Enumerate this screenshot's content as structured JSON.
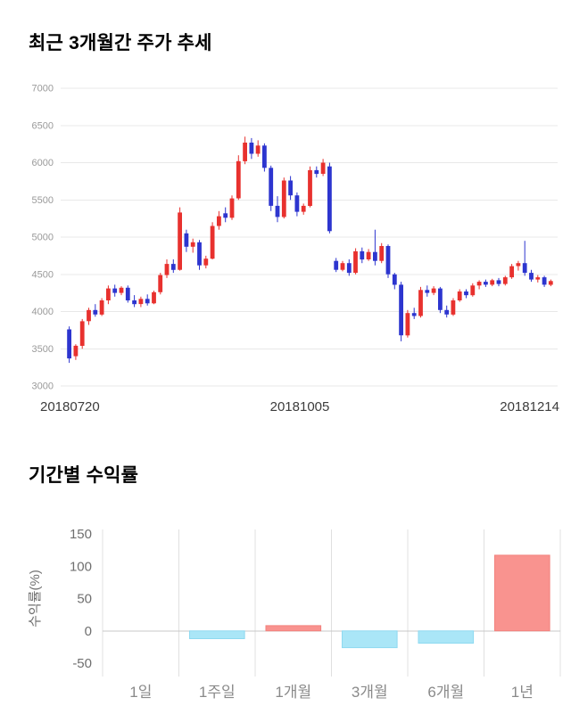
{
  "chart_data": [
    {
      "type": "candlestick",
      "title": "최근 3개월간 주가 추세",
      "ylim": [
        3000,
        7000
      ],
      "yticks": [
        3000,
        3500,
        4000,
        4500,
        5000,
        5500,
        6000,
        6500,
        7000
      ],
      "xtick_labels": [
        "20180720",
        "20181005",
        "20181214"
      ],
      "up_color": "#e8312e",
      "down_color": "#2d35cf",
      "grid_color": "#e8e8e8",
      "tick_color": "#9a9a9a",
      "candles_ohlc": [
        [
          3760,
          3800,
          3310,
          3370
        ],
        [
          3400,
          3560,
          3350,
          3540
        ],
        [
          3540,
          3900,
          3500,
          3870
        ],
        [
          3870,
          4050,
          3820,
          4020
        ],
        [
          4020,
          4100,
          3930,
          3960
        ],
        [
          3960,
          4180,
          3940,
          4150
        ],
        [
          4150,
          4350,
          4100,
          4310
        ],
        [
          4310,
          4360,
          4200,
          4250
        ],
        [
          4250,
          4340,
          4220,
          4320
        ],
        [
          4320,
          4350,
          4120,
          4150
        ],
        [
          4150,
          4220,
          4060,
          4100
        ],
        [
          4100,
          4200,
          4060,
          4170
        ],
        [
          4170,
          4230,
          4080,
          4110
        ],
        [
          4110,
          4280,
          4100,
          4260
        ],
        [
          4260,
          4520,
          4230,
          4490
        ],
        [
          4490,
          4700,
          4450,
          4640
        ],
        [
          4640,
          4700,
          4520,
          4560
        ],
        [
          4560,
          5400,
          4550,
          5330
        ],
        [
          5050,
          5100,
          4800,
          4870
        ],
        [
          4870,
          4980,
          4790,
          4930
        ],
        [
          4930,
          4960,
          4560,
          4620
        ],
        [
          4620,
          4750,
          4580,
          4710
        ],
        [
          4710,
          5200,
          4700,
          5150
        ],
        [
          5150,
          5350,
          5100,
          5280
        ],
        [
          5320,
          5400,
          5200,
          5260
        ],
        [
          5260,
          5560,
          5230,
          5520
        ],
        [
          5520,
          6100,
          5500,
          6020
        ],
        [
          6020,
          6350,
          5980,
          6270
        ],
        [
          6270,
          6330,
          6050,
          6120
        ],
        [
          6120,
          6300,
          6080,
          6230
        ],
        [
          6230,
          6260,
          5880,
          5930
        ],
        [
          5930,
          5960,
          5350,
          5420
        ],
        [
          5420,
          5550,
          5200,
          5270
        ],
        [
          5270,
          5800,
          5250,
          5760
        ],
        [
          5760,
          5820,
          5500,
          5560
        ],
        [
          5560,
          5600,
          5280,
          5340
        ],
        [
          5340,
          5450,
          5300,
          5420
        ],
        [
          5420,
          5950,
          5400,
          5900
        ],
        [
          5900,
          5950,
          5800,
          5850
        ],
        [
          5850,
          6050,
          5820,
          6000
        ],
        [
          5950,
          6000,
          5050,
          5080
        ],
        [
          4680,
          4720,
          4530,
          4560
        ],
        [
          4560,
          4680,
          4540,
          4650
        ],
        [
          4650,
          4700,
          4480,
          4520
        ],
        [
          4520,
          4850,
          4500,
          4810
        ],
        [
          4810,
          4860,
          4650,
          4700
        ],
        [
          4700,
          4840,
          4680,
          4800
        ],
        [
          4800,
          5100,
          4620,
          4680
        ],
        [
          4680,
          4920,
          4650,
          4880
        ],
        [
          4880,
          4900,
          4450,
          4500
        ],
        [
          4500,
          4520,
          4300,
          4360
        ],
        [
          4360,
          4400,
          3600,
          3680
        ],
        [
          3680,
          4020,
          3650,
          3980
        ],
        [
          3980,
          4050,
          3900,
          3940
        ],
        [
          3940,
          4330,
          3920,
          4290
        ],
        [
          4290,
          4350,
          4200,
          4250
        ],
        [
          4250,
          4340,
          4220,
          4310
        ],
        [
          4310,
          4330,
          3980,
          4020
        ],
        [
          4020,
          4080,
          3920,
          3960
        ],
        [
          3960,
          4180,
          3940,
          4150
        ],
        [
          4150,
          4300,
          4130,
          4270
        ],
        [
          4270,
          4300,
          4180,
          4220
        ],
        [
          4220,
          4380,
          4200,
          4350
        ],
        [
          4350,
          4420,
          4300,
          4400
        ],
        [
          4400,
          4430,
          4330,
          4360
        ],
        [
          4360,
          4440,
          4340,
          4420
        ],
        [
          4420,
          4450,
          4340,
          4370
        ],
        [
          4370,
          4480,
          4350,
          4460
        ],
        [
          4460,
          4640,
          4440,
          4610
        ],
        [
          4610,
          4680,
          4550,
          4650
        ],
        [
          4650,
          4950,
          4480,
          4520
        ],
        [
          4520,
          4560,
          4400,
          4430
        ],
        [
          4430,
          4490,
          4390,
          4460
        ],
        [
          4460,
          4480,
          4330,
          4360
        ],
        [
          4360,
          4430,
          4340,
          4410
        ]
      ]
    },
    {
      "type": "bar",
      "title": "기간별 수익률",
      "ylabel": "수익률(%)",
      "categories": [
        "1일",
        "1주일",
        "1개월",
        "3개월",
        "6개월",
        "1년"
      ],
      "values": [
        0,
        -12,
        8,
        -26,
        -19,
        117
      ],
      "ylim": [
        -50,
        150
      ],
      "yticks": [
        150,
        100,
        50,
        0,
        -50
      ],
      "positive_color": "#f9938f",
      "negative_color": "#aae6f7",
      "positive_border": "#f2817d",
      "negative_border": "#8ed9f0",
      "grid_color": "#e0e0e0",
      "zero_line_color": "#c8c8c8",
      "tick_color": "#6f6f6f",
      "category_label_color": "#8a8a8a"
    }
  ]
}
